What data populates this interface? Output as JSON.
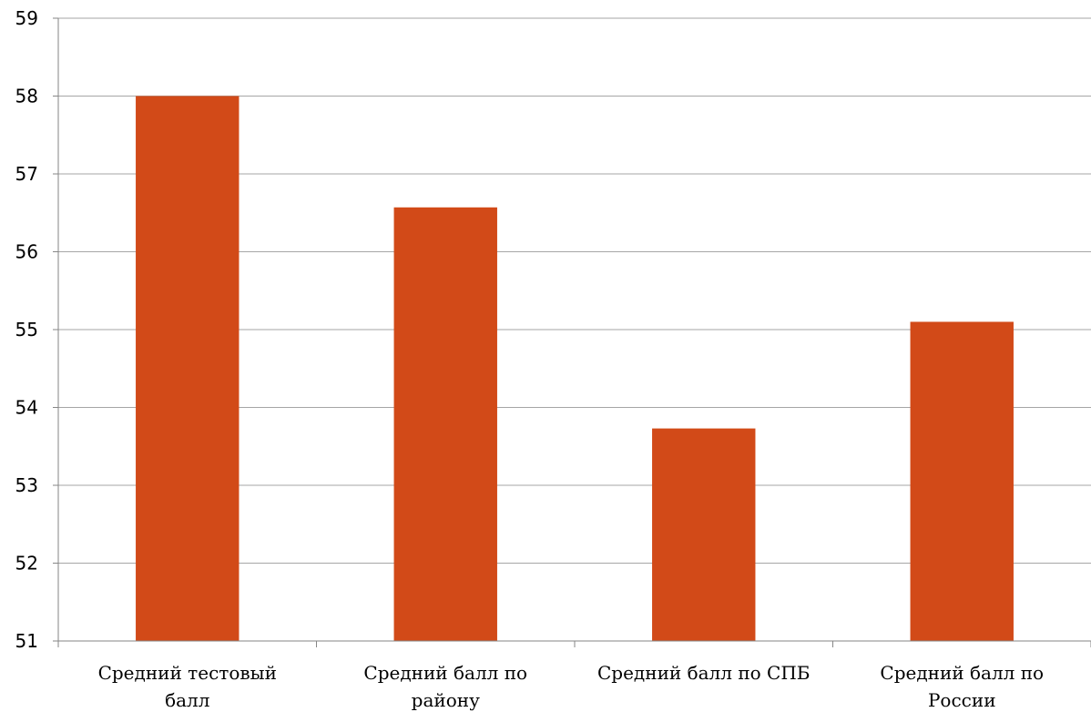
{
  "chart_data": {
    "type": "bar",
    "categories": [
      [
        "Средний тестовый",
        "балл"
      ],
      [
        "Средний балл по",
        "району"
      ],
      [
        "Средний балл по СПБ"
      ],
      [
        "Средний балл по",
        "России"
      ]
    ],
    "values": [
      58.0,
      56.57,
      53.73,
      55.1
    ],
    "ylim": [
      51,
      59
    ],
    "yticks": [
      51,
      52,
      53,
      54,
      55,
      56,
      57,
      58,
      59
    ],
    "grid": true,
    "legend": "none",
    "bar_color": "#D24A18",
    "grid_color": "#A6A6A6",
    "axis_color": "#868686"
  }
}
